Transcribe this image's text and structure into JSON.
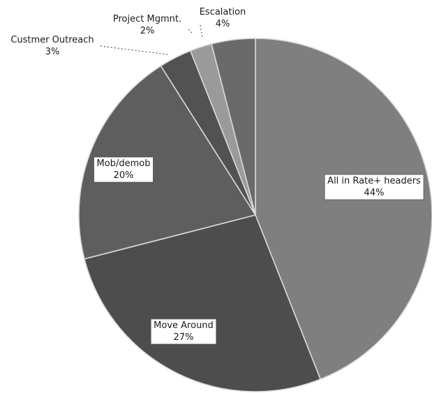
{
  "chart_data": {
    "type": "pie",
    "title": "",
    "start_angle_deg": 0,
    "direction": "clockwise",
    "legend": "none",
    "slices": [
      {
        "label": "All in Rate+ headers",
        "value": 44,
        "value_label": "44%",
        "color": "#7f7f7f"
      },
      {
        "label": "Move Around",
        "value": 27,
        "value_label": "27%",
        "color": "#4d4d4d"
      },
      {
        "label": "Mob/demob",
        "value": 20,
        "value_label": "20%",
        "color": "#5e5e5e"
      },
      {
        "label": "Custmer Outreach",
        "value": 3,
        "value_label": "3%",
        "color": "#525252"
      },
      {
        "label": "Project Mgmnt.",
        "value": 2,
        "value_label": "2%",
        "color": "#9a9a9a"
      },
      {
        "label": "Escalation",
        "value": 4,
        "value_label": "4%",
        "color": "#6a6a6a"
      }
    ]
  }
}
